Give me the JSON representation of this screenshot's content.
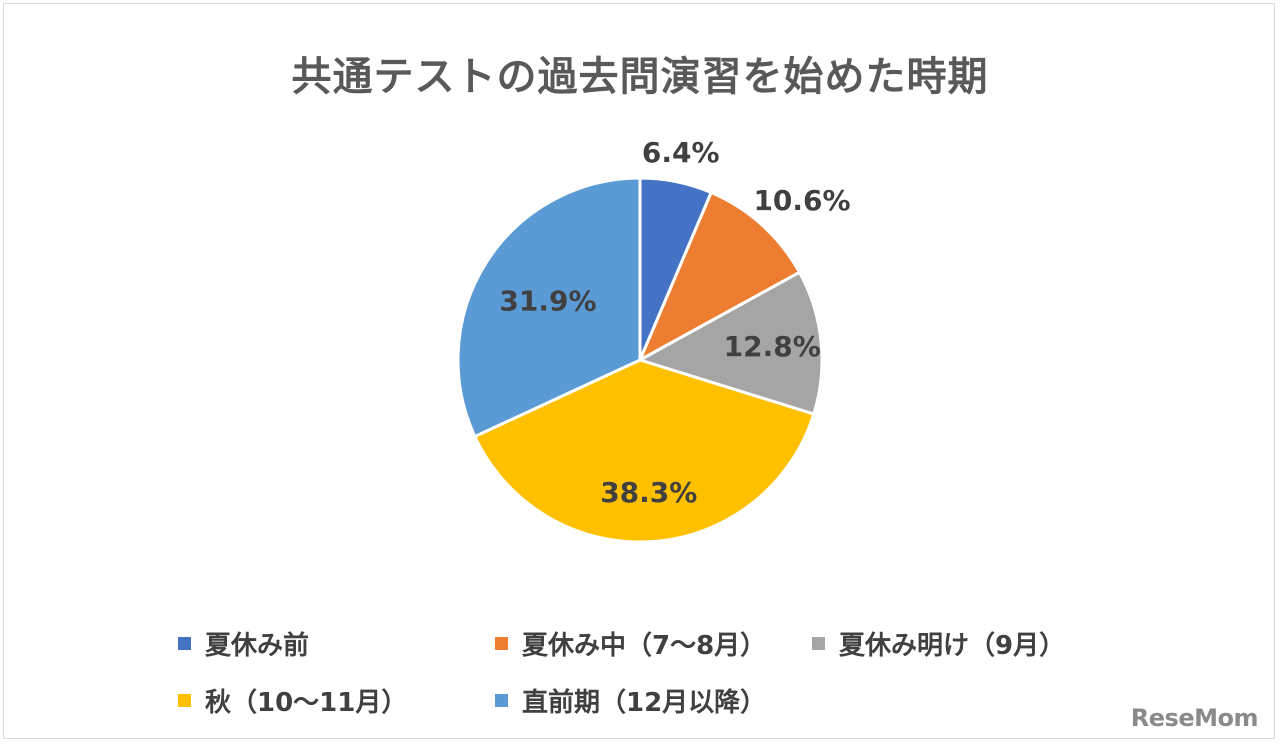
{
  "chart_data": {
    "type": "pie",
    "title": "共通テストの過去問演習を始めた時期",
    "categories": [
      "夏休み前",
      "夏休み中（7～8月）",
      "夏休み明け（9月）",
      "秋（10～11月）",
      "直前期（12月以降）"
    ],
    "values": [
      6.4,
      10.6,
      12.8,
      38.3,
      31.9
    ],
    "labels": [
      "6.4%",
      "10.6%",
      "12.8%",
      "38.3%",
      "31.9%"
    ],
    "colors": [
      "#4472C4",
      "#ED7D31",
      "#A5A5A5",
      "#FFC000",
      "#5B9BD5"
    ],
    "legend_position": "bottom",
    "start_angle": "12 o'clock",
    "direction": "clockwise"
  },
  "watermark": "ReseMom"
}
